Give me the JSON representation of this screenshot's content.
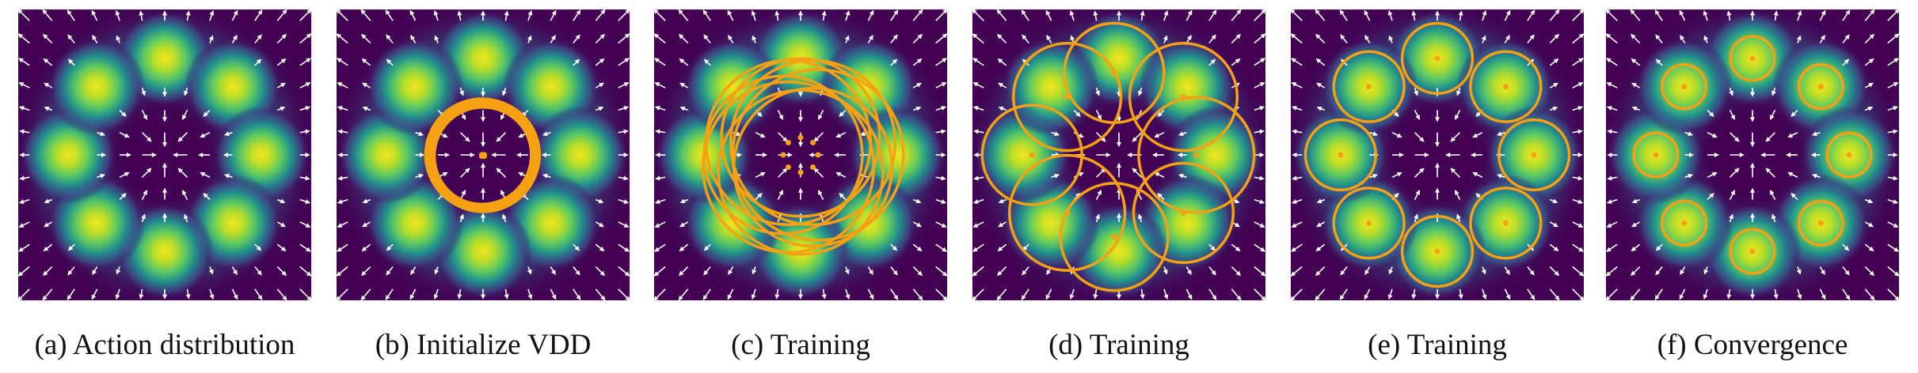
{
  "captions": [
    "(a) Action distribution",
    "(b) Initialize VDD",
    "(c) Training",
    "(d) Training",
    "(e) Training",
    "(f) Convergence"
  ]
}
